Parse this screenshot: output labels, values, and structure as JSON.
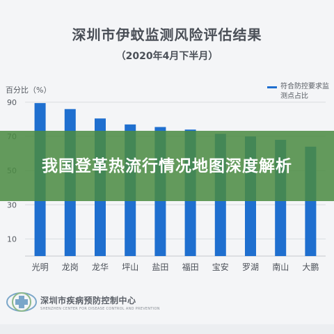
{
  "chart_data": {
    "type": "bar",
    "title": "深圳市伊蚊监测风险评估结果",
    "subtitle": "（2020年4月下半月）",
    "ylabel": "百分比（%）",
    "xlabel": "",
    "ylim": [
      0,
      92
    ],
    "yticks": [
      10,
      30,
      50,
      70,
      90
    ],
    "grid": true,
    "legend_position": "top-right",
    "categories": [
      "光明",
      "龙岗",
      "龙华",
      "坪山",
      "盐田",
      "福田",
      "宝安",
      "罗湖",
      "南山",
      "大鹏"
    ],
    "series": [
      {
        "name": "符合防控要求监测点占比",
        "values": [
          89.5,
          86,
          80.5,
          77,
          75.5,
          74,
          71.5,
          70,
          68,
          64
        ],
        "color": "#1f6fcf"
      }
    ]
  },
  "overlay": {
    "headline": "我国登革热流行情况地图深度解析"
  },
  "footer": {
    "org_name": "深圳市疾病预防控制中心",
    "org_name_en": "SHENZHEN CENTER FOR DISEASE CONTROL AND PREVENTION"
  },
  "colors": {
    "bar": "#1f6fcf",
    "banner": "#4a8a42",
    "background": "#f4f5f7"
  }
}
